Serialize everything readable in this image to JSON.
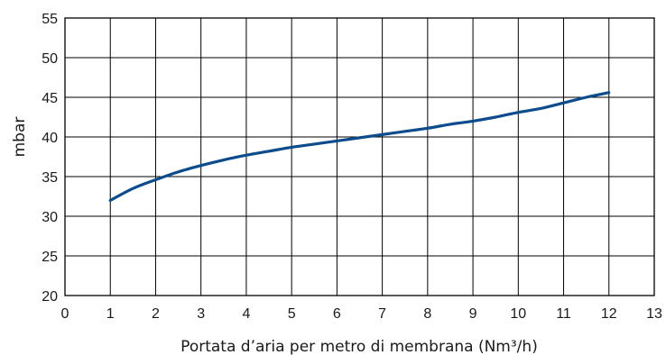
{
  "chart_data": {
    "type": "line",
    "title": "",
    "xlabel": "Portata d’aria per metro di membrana (Nm³/h)",
    "ylabel": "mbar",
    "xlim": [
      0,
      13
    ],
    "ylim": [
      20,
      55
    ],
    "x_ticks": [
      "0",
      "1",
      "2",
      "3",
      "4",
      "5",
      "6",
      "7",
      "8",
      "9",
      "10",
      "11",
      "12",
      "13"
    ],
    "y_ticks": [
      "20",
      "25",
      "30",
      "35",
      "40",
      "45",
      "50",
      "55"
    ],
    "grid": true,
    "legend": "none",
    "colors": {
      "line": "#0d4c8c",
      "grid": "#000000"
    },
    "series": [
      {
        "x": [
          1,
          1.5,
          2,
          2.5,
          3,
          3.5,
          4,
          4.5,
          5,
          5.5,
          6,
          6.5,
          7,
          7.5,
          8,
          8.5,
          9,
          9.5,
          10,
          10.5,
          11,
          11.5,
          12
        ],
        "values": [
          32.0,
          33.5,
          34.6,
          35.6,
          36.4,
          37.1,
          37.7,
          38.2,
          38.7,
          39.1,
          39.5,
          39.9,
          40.3,
          40.7,
          41.1,
          41.6,
          42.0,
          42.5,
          43.1,
          43.6,
          44.3,
          45.0,
          45.6
        ]
      }
    ]
  }
}
